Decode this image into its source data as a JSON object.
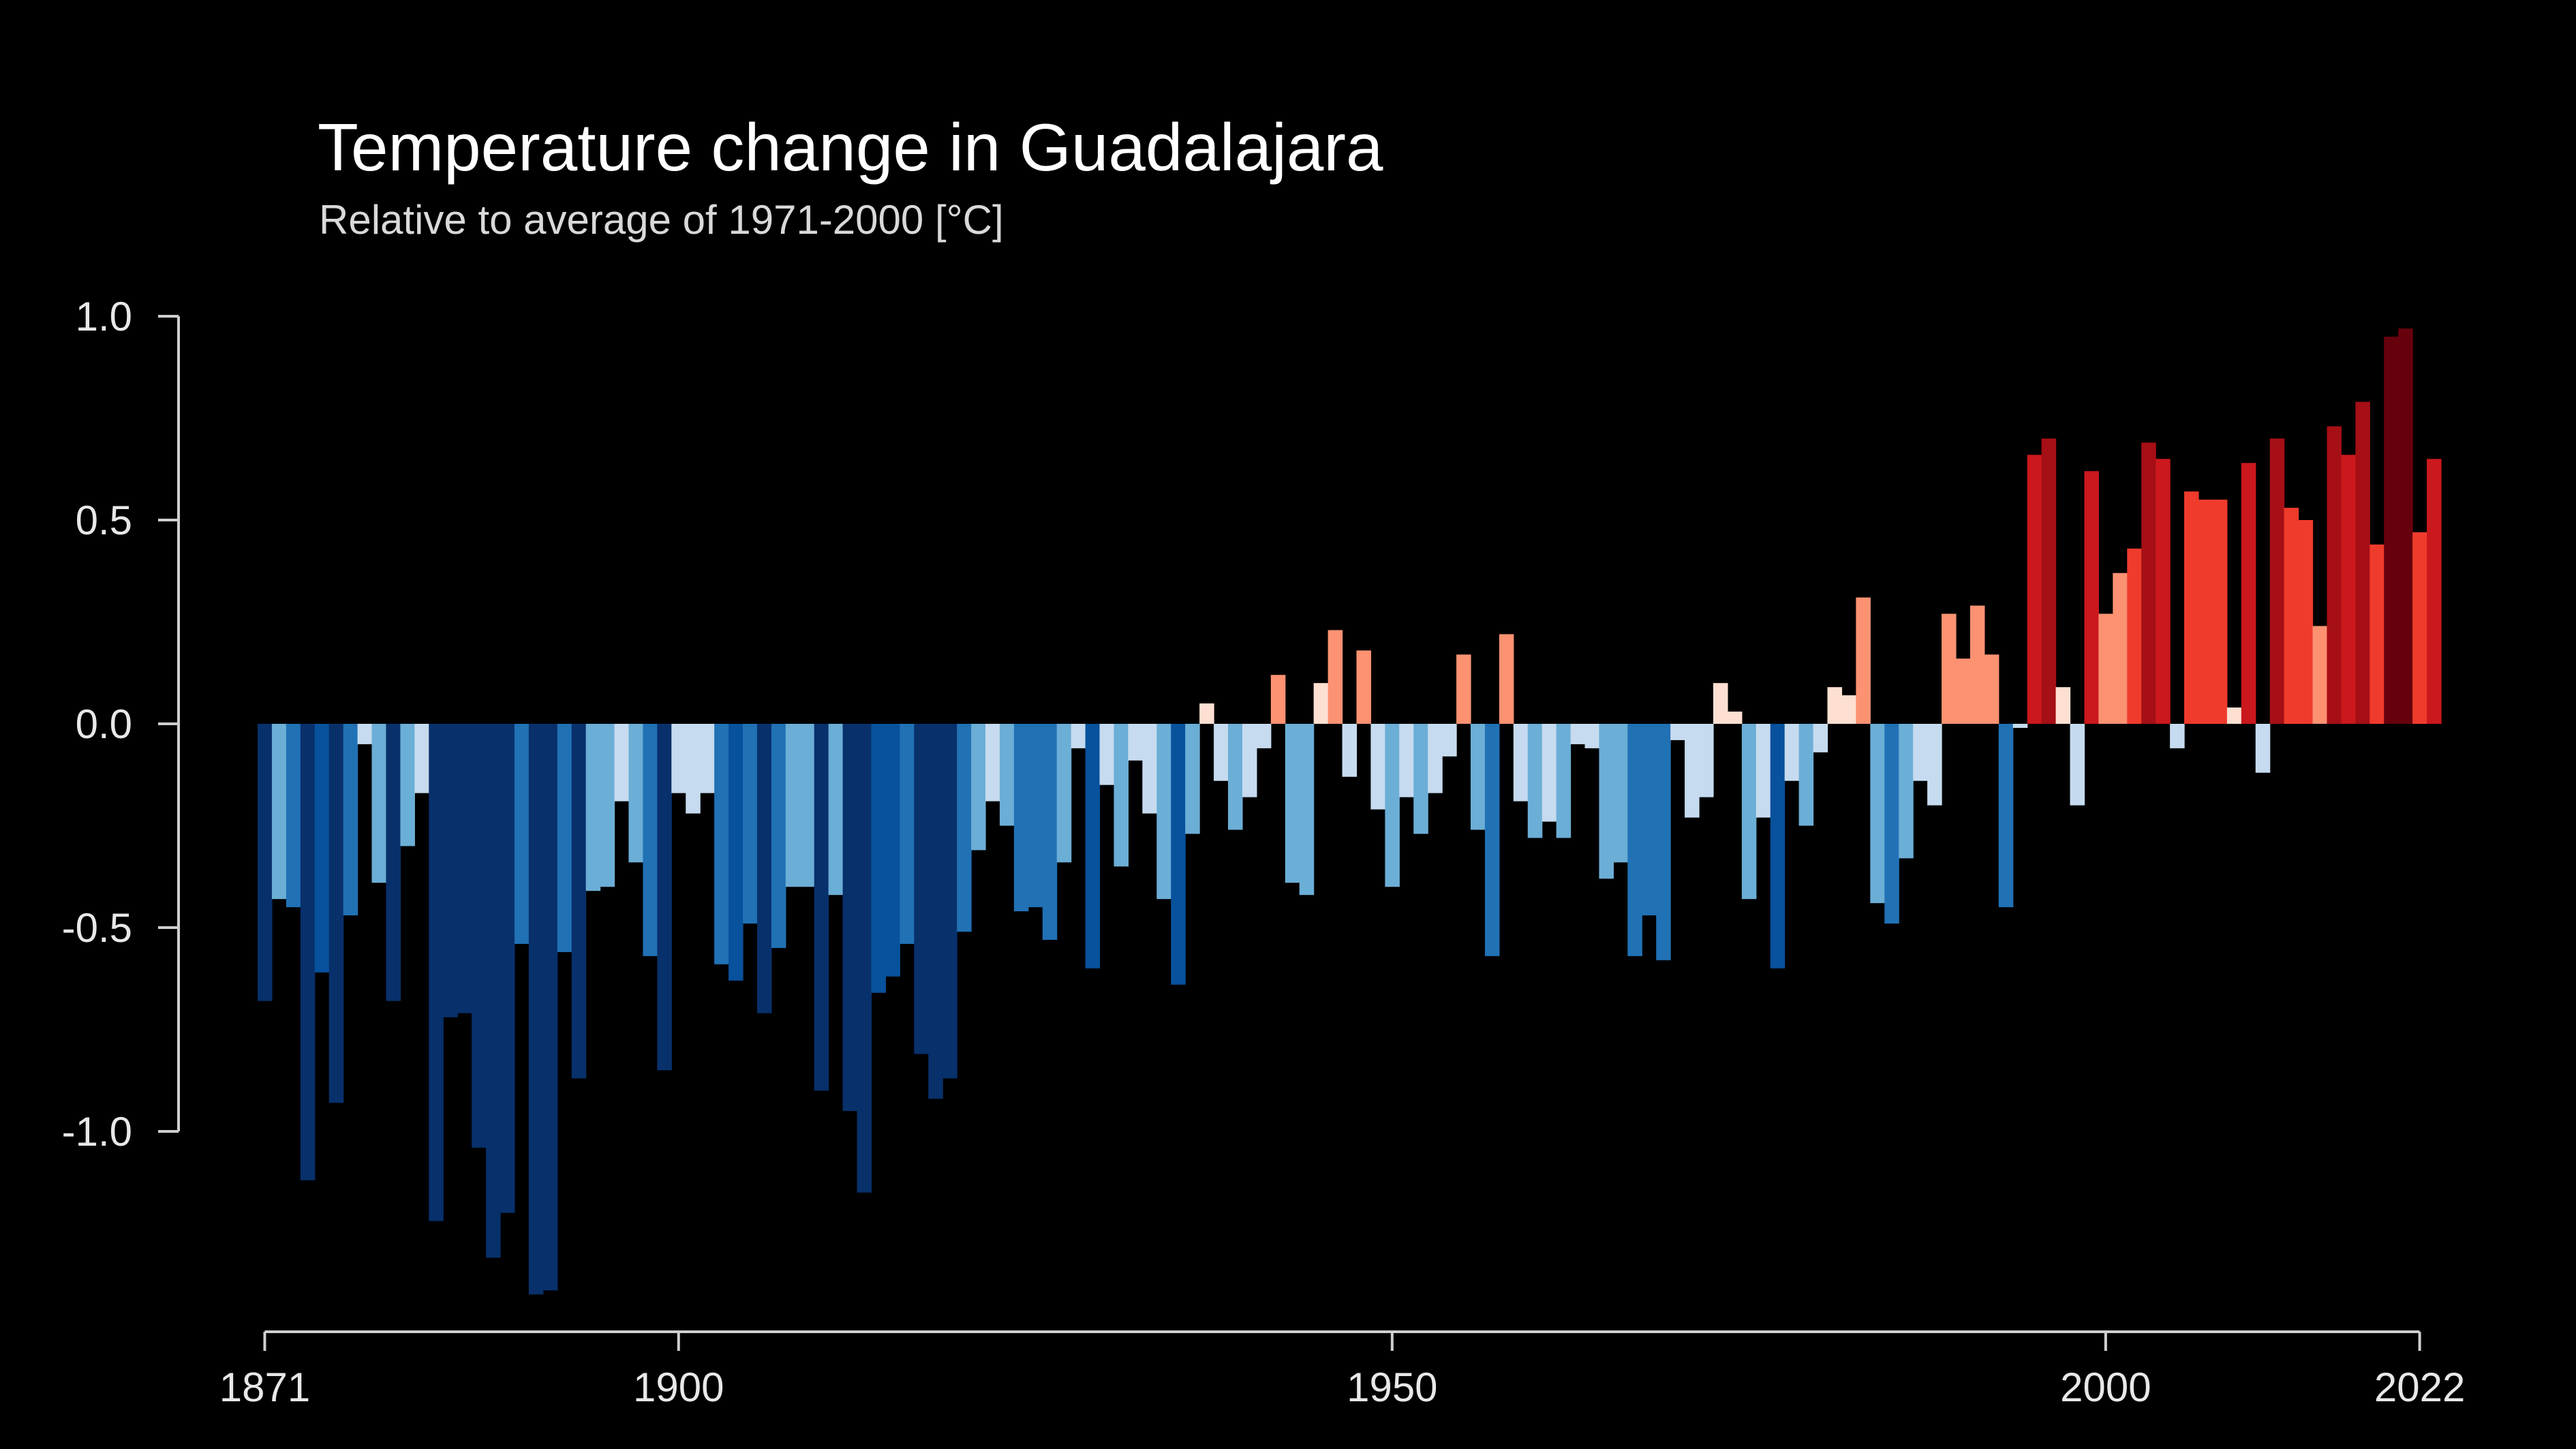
{
  "chart_data": {
    "type": "bar",
    "title": "Temperature change in Guadalajara",
    "subtitle": "Relative to average of 1971-2000  [°C]",
    "xlabel": "",
    "ylabel": "",
    "x_start": 1871,
    "x_end": 2022,
    "ylim": [
      -1.4,
      1.0
    ],
    "xlim": [
      1871,
      2022
    ],
    "x_ticks": [
      1871,
      1900,
      1950,
      2000,
      2022
    ],
    "y_ticks": [
      {
        "value": 1.0,
        "label": "1.0"
      },
      {
        "value": 0.5,
        "label": "0.5"
      },
      {
        "value": 0.0,
        "label": "0.0"
      },
      {
        "value": -0.5,
        "label": "-0.5"
      },
      {
        "value": -1.0,
        "label": "-1.0"
      }
    ],
    "grid": false,
    "legend": "none",
    "color_scale": {
      "negative": [
        "#c6dbef",
        "#6baed6",
        "#2171b5",
        "#08519c",
        "#08306b"
      ],
      "positive": [
        "#fee0d2",
        "#fc9272",
        "#ef3b2c",
        "#cb181d",
        "#a50f15",
        "#67000d"
      ]
    },
    "values": [
      -0.68,
      -0.43,
      -0.45,
      -1.12,
      -0.61,
      -0.93,
      -0.47,
      -0.05,
      -0.39,
      -0.68,
      -0.3,
      -0.17,
      -1.22,
      -0.72,
      -0.71,
      -1.04,
      -1.31,
      -1.2,
      -0.54,
      -1.4,
      -1.39,
      -0.56,
      -0.87,
      -0.41,
      -0.4,
      -0.19,
      -0.34,
      -0.57,
      -0.85,
      -0.17,
      -0.22,
      -0.17,
      -0.59,
      -0.63,
      -0.49,
      -0.71,
      -0.55,
      -0.4,
      -0.4,
      -0.9,
      -0.42,
      -0.95,
      -1.15,
      -0.66,
      -0.62,
      -0.54,
      -0.81,
      -0.92,
      -0.87,
      -0.51,
      -0.31,
      -0.19,
      -0.25,
      -0.46,
      -0.45,
      -0.53,
      -0.34,
      -0.06,
      -0.6,
      -0.15,
      -0.35,
      -0.09,
      -0.22,
      -0.43,
      -0.64,
      -0.27,
      0.05,
      -0.14,
      -0.26,
      -0.18,
      -0.06,
      0.12,
      -0.39,
      -0.42,
      0.1,
      0.23,
      -0.13,
      0.18,
      -0.21,
      -0.4,
      -0.18,
      -0.27,
      -0.17,
      -0.08,
      0.17,
      -0.26,
      -0.57,
      0.22,
      -0.19,
      -0.28,
      -0.24,
      -0.28,
      -0.05,
      -0.06,
      -0.38,
      -0.34,
      -0.57,
      -0.47,
      -0.58,
      -0.04,
      -0.23,
      -0.18,
      0.1,
      0.03,
      -0.43,
      -0.23,
      -0.6,
      -0.14,
      -0.25,
      -0.07,
      0.09,
      0.07,
      0.31,
      -0.44,
      -0.49,
      -0.33,
      -0.14,
      -0.2,
      0.27,
      0.16,
      0.29,
      0.17,
      -0.45,
      -0.01,
      0.66,
      0.7,
      0.09,
      -0.2,
      0.62,
      0.27,
      0.37,
      0.43,
      0.69,
      0.65,
      -0.06,
      0.57,
      0.55,
      0.55,
      0.04,
      0.64,
      -0.12,
      0.7,
      0.53,
      0.5,
      0.24,
      0.73,
      0.66,
      0.79,
      0.44,
      0.95,
      0.97,
      0.47,
      0.65
    ]
  }
}
